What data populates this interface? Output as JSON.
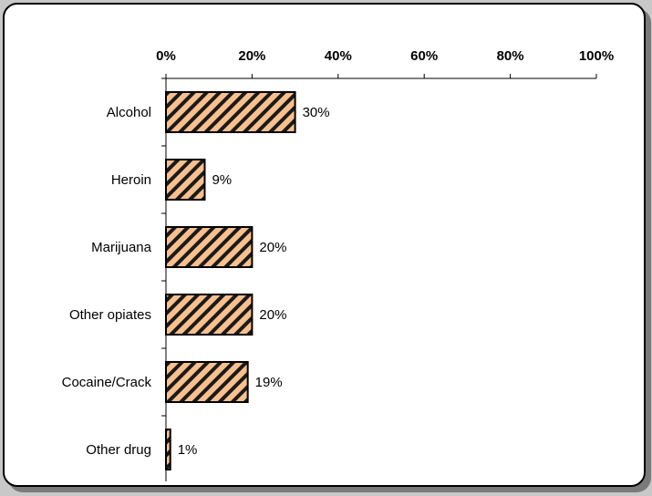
{
  "chart_data": {
    "type": "bar",
    "orientation": "horizontal",
    "categories": [
      "Alcohol",
      "Heroin",
      "Marijuana",
      "Other opiates",
      "Cocaine/Crack",
      "Other drug"
    ],
    "values": [
      30,
      9,
      20,
      20,
      19,
      1
    ],
    "value_labels": [
      "30%",
      "9%",
      "20%",
      "20%",
      "19%",
      "1%"
    ],
    "xlim": [
      0,
      100
    ],
    "x_ticks": [
      0,
      20,
      40,
      60,
      80,
      100
    ],
    "x_tick_labels": [
      "0%",
      "20%",
      "40%",
      "60%",
      "80%",
      "100%"
    ],
    "x_axis_position": "top",
    "grid": false,
    "legend": "none",
    "bar_fill_color": "#f9c08e",
    "bar_hatch_color": "#1a1a1a",
    "bar_pattern": "diagonal-stripes"
  }
}
